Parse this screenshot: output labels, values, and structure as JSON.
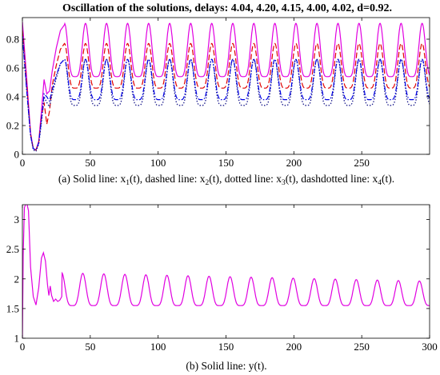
{
  "chart_data": [
    {
      "type": "line",
      "title": "Oscillation of the solutions, delays: 4.04, 4.20, 4.15, 4.00, 4.02, d=0.92.",
      "caption": "(a) Solid line: x1(t), dashed line: x2(t), dotted line: x3(t), dashdotted line: x4(t).",
      "caption_parts": {
        "a": "(a) Solid line: x",
        "b": "(t), dashed line: x",
        "c": "(t), dotted line: x",
        "d": "(t), dashdotted line: x",
        "e": "(t).",
        "s1": "1",
        "s2": "2",
        "s3": "3",
        "s4": "4"
      },
      "xlim": [
        0,
        300
      ],
      "ylim": [
        0,
        0.95
      ],
      "xticks": [
        "0",
        "50",
        "100",
        "150",
        "200",
        "250"
      ],
      "yticks": [
        "0",
        "0.2",
        "0.4",
        "0.6",
        "0.8"
      ],
      "period": 15.5,
      "series": [
        {
          "name": "x1(t)",
          "style": "solid",
          "color": "#e100e1",
          "min": 0.54,
          "max": 0.91,
          "transient": [
            [
              0,
              0.92
            ],
            [
              3,
              0.55
            ],
            [
              6,
              0.15
            ],
            [
              8,
              0.04
            ],
            [
              10,
              0.03
            ],
            [
              12,
              0.09
            ],
            [
              14,
              0.3
            ],
            [
              16,
              0.52
            ],
            [
              18,
              0.42
            ],
            [
              20,
              0.44
            ],
            [
              22,
              0.58
            ],
            [
              25,
              0.74
            ],
            [
              28,
              0.86
            ],
            [
              31,
              0.9
            ]
          ]
        },
        {
          "name": "x2(t)",
          "style": "dashed",
          "color": "#e00000",
          "min": 0.46,
          "max": 0.77,
          "transient": [
            [
              0,
              0.86
            ],
            [
              3,
              0.5
            ],
            [
              6,
              0.14
            ],
            [
              8,
              0.04
            ],
            [
              10,
              0.03
            ],
            [
              12,
              0.08
            ],
            [
              14,
              0.26
            ],
            [
              16,
              0.36
            ],
            [
              18,
              0.21
            ],
            [
              20,
              0.3
            ],
            [
              22,
              0.48
            ],
            [
              25,
              0.62
            ],
            [
              28,
              0.73
            ],
            [
              31,
              0.77
            ]
          ]
        },
        {
          "name": "x3(t)",
          "style": "dotted",
          "color": "#1a1a8c",
          "min": 0.34,
          "max": 0.66,
          "transient": [
            [
              0,
              0.84
            ],
            [
              3,
              0.47
            ],
            [
              6,
              0.13
            ],
            [
              8,
              0.03
            ],
            [
              10,
              0.02
            ],
            [
              12,
              0.07
            ],
            [
              14,
              0.22
            ],
            [
              16,
              0.4
            ],
            [
              18,
              0.36
            ],
            [
              20,
              0.33
            ],
            [
              22,
              0.42
            ],
            [
              25,
              0.53
            ],
            [
              28,
              0.63
            ],
            [
              31,
              0.66
            ]
          ]
        },
        {
          "name": "x4(t)",
          "style": "dashdot",
          "color": "#0000e6",
          "min": 0.38,
          "max": 0.66,
          "transient": [
            [
              0,
              0.82
            ],
            [
              3,
              0.46
            ],
            [
              6,
              0.13
            ],
            [
              8,
              0.04
            ],
            [
              10,
              0.03
            ],
            [
              12,
              0.08
            ],
            [
              14,
              0.24
            ],
            [
              16,
              0.42
            ],
            [
              18,
              0.4
            ],
            [
              20,
              0.37
            ],
            [
              22,
              0.45
            ],
            [
              25,
              0.55
            ],
            [
              28,
              0.63
            ],
            [
              31,
              0.66
            ]
          ]
        }
      ]
    },
    {
      "type": "line",
      "caption": "(b) Solid line: y(t).",
      "xlim": [
        0,
        300
      ],
      "ylim": [
        1,
        3.25
      ],
      "xticks": [
        "0",
        "50",
        "100",
        "150",
        "200",
        "250",
        "300"
      ],
      "yticks": [
        "1",
        "1.5",
        "2",
        "2.5",
        "3"
      ],
      "period": 15.5,
      "series": [
        {
          "name": "y(t)",
          "style": "solid",
          "color": "#e100e1",
          "min": 1.55,
          "base_max": 2.1,
          "end_max": 1.96,
          "transient": [
            [
              0,
              1.0
            ],
            [
              0.6,
              2.4
            ],
            [
              1.5,
              3.2
            ],
            [
              3,
              3.3
            ],
            [
              4.5,
              3.15
            ],
            [
              6,
              2.2
            ],
            [
              8,
              1.7
            ],
            [
              10,
              1.56
            ],
            [
              12,
              1.85
            ],
            [
              14,
              2.35
            ],
            [
              15.5,
              2.44
            ],
            [
              17,
              2.3
            ],
            [
              18.5,
              1.9
            ],
            [
              19.5,
              1.72
            ],
            [
              20.5,
              1.88
            ],
            [
              21.5,
              1.72
            ],
            [
              23,
              1.62
            ],
            [
              24.5,
              1.66
            ],
            [
              26,
              1.62
            ],
            [
              27.5,
              1.64
            ],
            [
              29,
              1.7
            ]
          ]
        }
      ]
    }
  ]
}
